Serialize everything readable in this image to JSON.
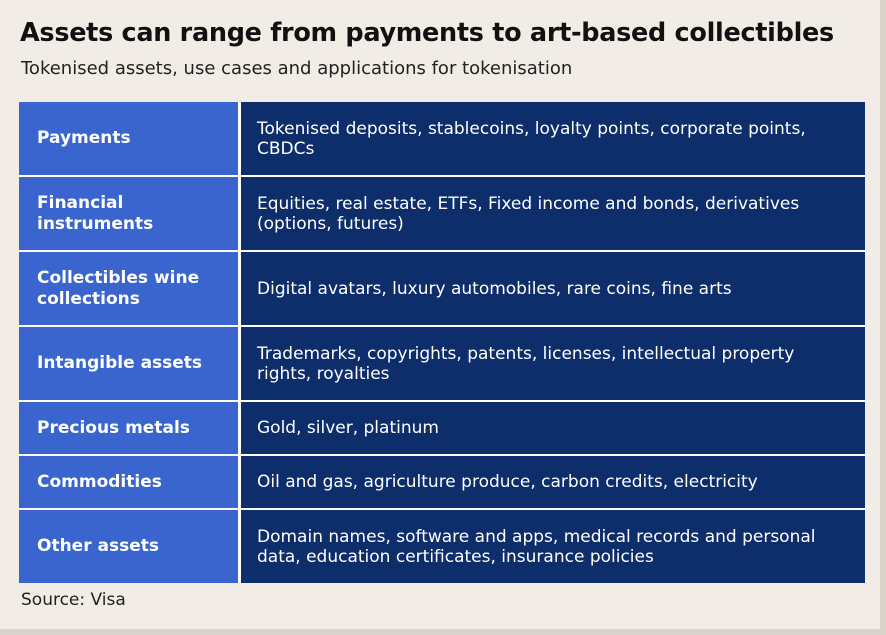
{
  "title": "Assets can range from payments to art-based collectibles",
  "subtitle": "Tokenised assets, use cases and applications for tokenisation",
  "rows": [
    {
      "category": "Payments",
      "examples": "Tokenised deposits, stablecoins, loyalty points, corporate points, CBDCs"
    },
    {
      "category": "Financial instruments",
      "examples": "Equities, real estate, ETFs, Fixed income and bonds, derivatives (options, futures)"
    },
    {
      "category": "Collectibles wine collections",
      "examples": "Digital avatars, luxury automobiles, rare coins, fine arts"
    },
    {
      "category": "Intangible assets",
      "examples": "Trademarks, copyrights, patents, licenses, intellectual property rights, royalties"
    },
    {
      "category": "Precious metals",
      "examples": "Gold, silver, platinum"
    },
    {
      "category": "Commodities",
      "examples": "Oil and gas, agriculture produce, carbon credits, electricity"
    },
    {
      "category": "Other assets",
      "examples": "Domain names, software and apps, medical records and personal data, education certificates, insurance policies"
    }
  ],
  "source": "Source: Visa",
  "colors": {
    "background": "#f1ede6",
    "category_cell": "#3a65cf",
    "description_cell": "#0e2e6b"
  }
}
